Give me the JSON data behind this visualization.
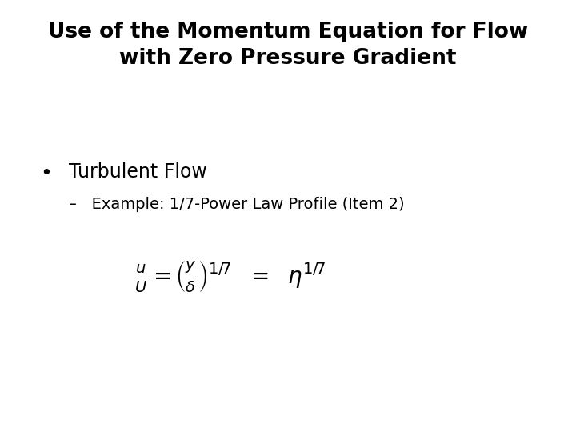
{
  "title_line1": "Use of the Momentum Equation for Flow",
  "title_line2": "with Zero Pressure Gradient",
  "bullet_text": "Turbulent Flow",
  "sub_bullet_text": "Example: 1/7-Power Law Profile (Item 2)",
  "background_color": "#ffffff",
  "text_color": "#000000",
  "title_fontsize": 19,
  "bullet_fontsize": 17,
  "sub_bullet_fontsize": 14,
  "equation_fontsize": 20,
  "fig_width": 7.2,
  "fig_height": 5.4,
  "dpi": 100
}
